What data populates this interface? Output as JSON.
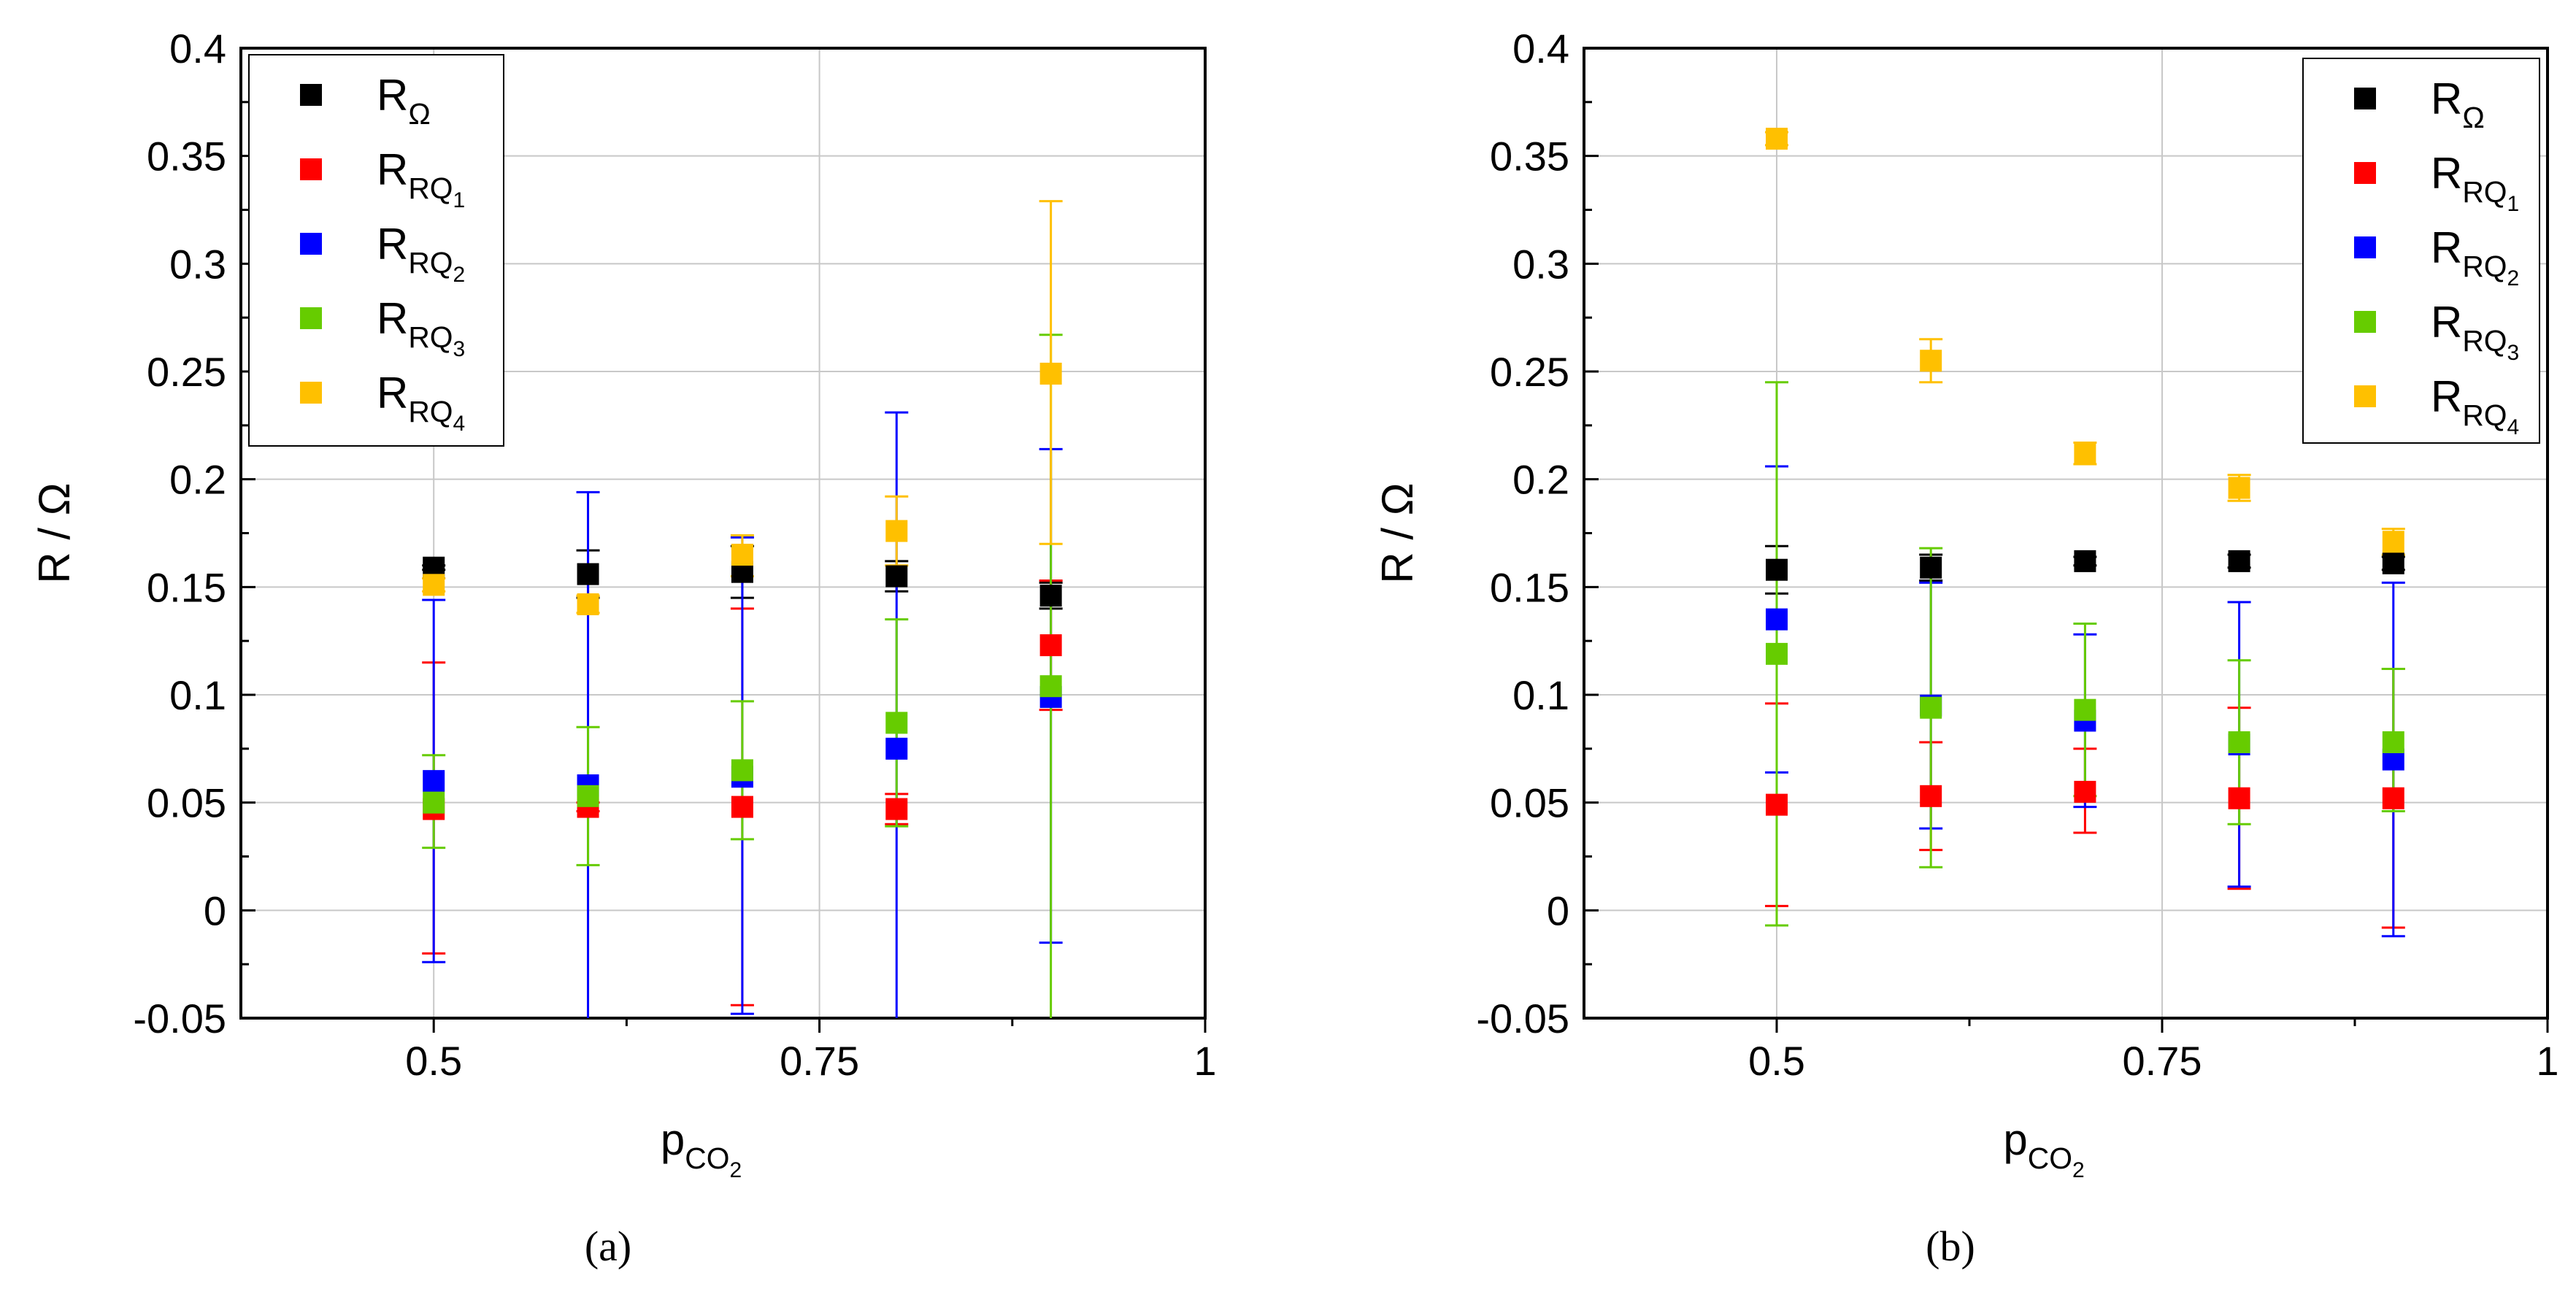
{
  "figure": {
    "panel_labels": [
      "(a)",
      "(b)"
    ]
  },
  "chart_data": [
    {
      "type": "scatter",
      "panel": "(a)",
      "title": "",
      "xlabel": "p",
      "xlabel_sub": "CO",
      "xlabel_subsub": "2",
      "ylabel": "R / Ω",
      "xlim": [
        0.375,
        1.0
      ],
      "ylim": [
        -0.05,
        0.4
      ],
      "xticks": [
        0.5,
        0.75,
        1
      ],
      "xtick_labels": [
        "0.5",
        "0.75",
        "1"
      ],
      "yticks": [
        -0.05,
        0,
        0.05,
        0.1,
        0.15,
        0.2,
        0.25,
        0.3,
        0.35,
        0.4
      ],
      "ytick_labels": [
        "-0.05",
        "0",
        "0.05",
        "0.1",
        "0.15",
        "0.2",
        "0.25",
        "0.3",
        "0.35",
        "0.4"
      ],
      "grid": true,
      "legend_position": "top-left",
      "x": [
        0.5,
        0.6,
        0.7,
        0.8,
        0.9
      ],
      "series": [
        {
          "name": "R",
          "sub": "Ω",
          "subsub": "",
          "color": "#000000",
          "values": [
            0.159,
            0.156,
            0.157,
            0.155,
            0.146
          ],
          "err_low": [
            0.158,
            0.145,
            0.145,
            0.148,
            0.14
          ],
          "err_high": [
            0.16,
            0.167,
            0.169,
            0.162,
            0.152
          ]
        },
        {
          "name": "R",
          "sub": "RQ",
          "subsub": "1",
          "color": "#ff0000",
          "values": [
            0.047,
            0.048,
            0.048,
            0.047,
            0.123
          ],
          "err_low": [
            -0.02,
            0.046,
            -0.044,
            0.04,
            0.093
          ],
          "err_high": [
            0.115,
            0.05,
            0.14,
            0.054,
            0.153
          ]
        },
        {
          "name": "R",
          "sub": "RQ",
          "subsub": "2",
          "color": "#0000ff",
          "values": [
            0.06,
            0.058,
            0.062,
            0.075,
            0.099
          ],
          "err_low": [
            -0.024,
            -0.077,
            -0.048,
            -0.081,
            -0.015
          ],
          "err_high": [
            0.144,
            0.194,
            0.173,
            0.231,
            0.214
          ]
        },
        {
          "name": "R",
          "sub": "RQ",
          "subsub": "3",
          "color": "#66cc00",
          "values": [
            0.05,
            0.053,
            0.065,
            0.087,
            0.104
          ],
          "err_low": [
            0.029,
            0.021,
            0.033,
            0.039,
            -0.06
          ],
          "err_high": [
            0.072,
            0.085,
            0.097,
            0.135,
            0.267
          ]
        },
        {
          "name": "R",
          "sub": "RQ",
          "subsub": "4",
          "color": "#ffc000",
          "values": [
            0.151,
            0.142,
            0.165,
            0.176,
            0.249
          ],
          "err_low": [
            0.148,
            0.138,
            0.155,
            0.16,
            0.17
          ],
          "err_high": [
            0.154,
            0.146,
            0.174,
            0.192,
            0.329
          ]
        }
      ]
    },
    {
      "type": "scatter",
      "panel": "(b)",
      "title": "",
      "xlabel": "p",
      "xlabel_sub": "CO",
      "xlabel_subsub": "2",
      "ylabel": "R / Ω",
      "xlim": [
        0.375,
        1.0
      ],
      "ylim": [
        -0.05,
        0.4
      ],
      "xticks": [
        0.5,
        0.75,
        1
      ],
      "xtick_labels": [
        "0.5",
        "0.75",
        "1"
      ],
      "yticks": [
        -0.05,
        0,
        0.05,
        0.1,
        0.15,
        0.2,
        0.25,
        0.3,
        0.35,
        0.4
      ],
      "ytick_labels": [
        "-0.05",
        "0",
        "0.05",
        "0.1",
        "0.15",
        "0.2",
        "0.25",
        "0.3",
        "0.35",
        "0.4"
      ],
      "grid": true,
      "legend_position": "top-right",
      "x": [
        0.5,
        0.6,
        0.7,
        0.8,
        0.9
      ],
      "series": [
        {
          "name": "R",
          "sub": "Ω",
          "subsub": "",
          "color": "#000000",
          "values": [
            0.158,
            0.159,
            0.162,
            0.162,
            0.161
          ],
          "err_low": [
            0.147,
            0.153,
            0.16,
            0.159,
            0.158
          ],
          "err_high": [
            0.169,
            0.165,
            0.164,
            0.165,
            0.164
          ]
        },
        {
          "name": "R",
          "sub": "RQ",
          "subsub": "1",
          "color": "#ff0000",
          "values": [
            0.049,
            0.053,
            0.055,
            0.052,
            0.052
          ],
          "err_low": [
            0.002,
            0.028,
            0.036,
            0.01,
            -0.008
          ],
          "err_high": [
            0.096,
            0.078,
            0.075,
            0.094,
            0.112
          ]
        },
        {
          "name": "R",
          "sub": "RQ",
          "subsub": "2",
          "color": "#0000ff",
          "values": [
            0.135,
            0.095,
            0.088,
            0.077,
            0.07
          ],
          "err_low": [
            0.064,
            0.038,
            0.048,
            0.011,
            -0.012
          ],
          "err_high": [
            0.206,
            0.152,
            0.128,
            0.143,
            0.152
          ]
        },
        {
          "name": "R",
          "sub": "RQ",
          "subsub": "3",
          "color": "#66cc00",
          "values": [
            0.119,
            0.094,
            0.093,
            0.078,
            0.078
          ],
          "err_low": [
            -0.007,
            0.02,
            0.053,
            0.04,
            0.046
          ],
          "err_high": [
            0.245,
            0.168,
            0.133,
            0.116,
            0.112
          ]
        },
        {
          "name": "R",
          "sub": "RQ",
          "subsub": "4",
          "color": "#ffc000",
          "values": [
            0.358,
            0.255,
            0.212,
            0.196,
            0.171
          ],
          "err_low": [
            0.355,
            0.245,
            0.207,
            0.19,
            0.165
          ],
          "err_high": [
            0.361,
            0.265,
            0.217,
            0.202,
            0.177
          ]
        }
      ]
    }
  ]
}
